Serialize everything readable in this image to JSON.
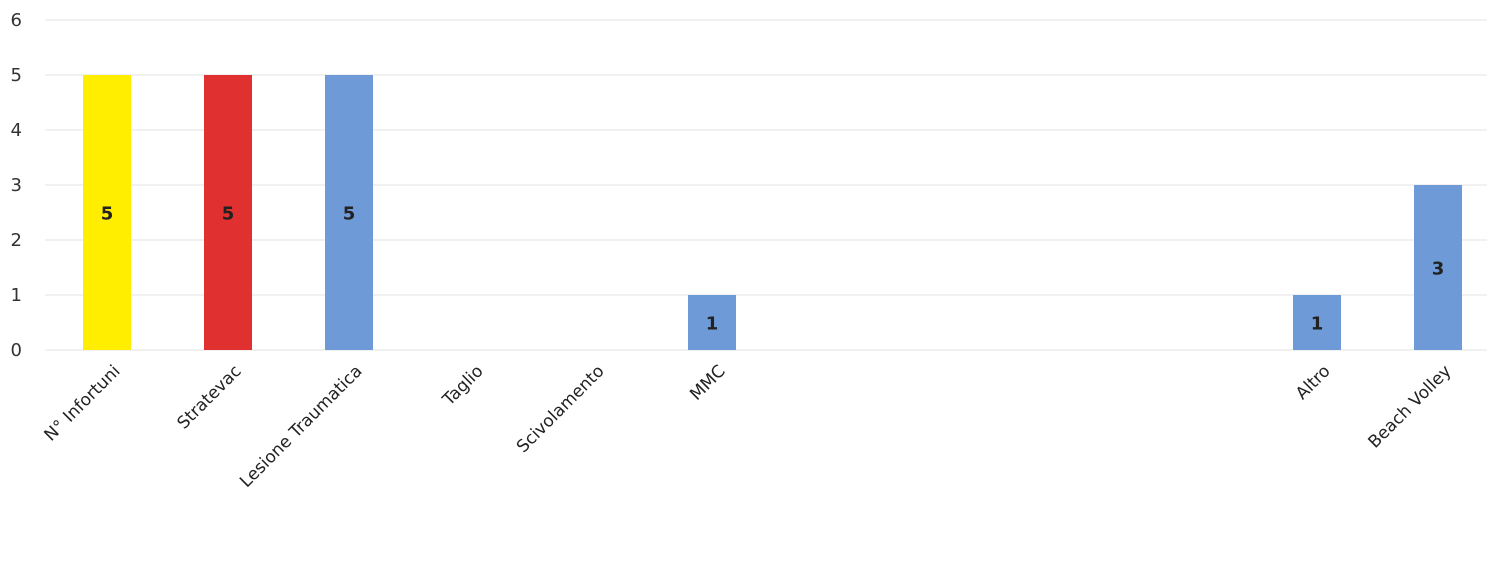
{
  "chart_data": {
    "type": "bar",
    "title": "",
    "xlabel": "",
    "ylabel": "",
    "ylim": [
      0,
      6
    ],
    "yticks": [
      "0",
      "1",
      "2",
      "3",
      "4",
      "5",
      "6"
    ],
    "grid": true,
    "legend": "none",
    "categories": [
      "N° Infortuni",
      "Stratevac",
      "Lesione Traumatica",
      "Taglio",
      "Scivolamento",
      "MMC",
      "",
      "",
      "",
      "",
      "Altro",
      "Beach Volley"
    ],
    "values": [
      5,
      5,
      5,
      null,
      null,
      1,
      null,
      null,
      null,
      null,
      1,
      3
    ],
    "data_labels": [
      "5",
      "5",
      "5",
      "",
      "",
      "1",
      "",
      "",
      "",
      "",
      "1",
      "3"
    ],
    "bar_colors": [
      "#ffee00",
      "#e03030",
      "#6f9ad8",
      "#6f9ad8",
      "#6f9ad8",
      "#6f9ad8",
      "#6f9ad8",
      "#6f9ad8",
      "#6f9ad8",
      "#6f9ad8",
      "#6f9ad8",
      "#6f9ad8"
    ]
  }
}
